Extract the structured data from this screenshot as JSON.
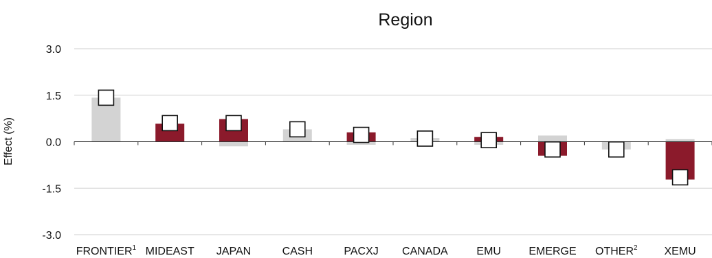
{
  "chart_data": {
    "type": "bar",
    "title": "Region",
    "ylabel": "Effect (%)",
    "ylim": [
      -3.0,
      3.0
    ],
    "yticks": [
      "3.0",
      "1.5",
      "0.0",
      "-1.5",
      "-3.0"
    ],
    "ytick_values": [
      3.0,
      1.5,
      0.0,
      -1.5,
      -3.0
    ],
    "grid": true,
    "categories": [
      {
        "label": "FRONTIER",
        "sup": "1"
      },
      {
        "label": "MIDEAST",
        "sup": ""
      },
      {
        "label": "JAPAN",
        "sup": ""
      },
      {
        "label": "CASH",
        "sup": ""
      },
      {
        "label": "PACXJ",
        "sup": ""
      },
      {
        "label": "CANADA",
        "sup": ""
      },
      {
        "label": "EMU",
        "sup": ""
      },
      {
        "label": "EMERGE",
        "sup": ""
      },
      {
        "label": "OTHER",
        "sup": "2"
      },
      {
        "label": "XEMU",
        "sup": ""
      }
    ],
    "series": [
      {
        "values": [
          1.42,
          0.0,
          -0.15,
          0.4,
          -0.1,
          0.12,
          -0.1,
          0.2,
          -0.25,
          0.08
        ],
        "color": "#d3d3d3"
      },
      {
        "values": [
          0.0,
          0.58,
          0.73,
          0.0,
          0.3,
          0.0,
          0.15,
          -0.45,
          0.0,
          -1.22
        ],
        "color": "#8b1a2b"
      },
      {
        "values": [
          1.42,
          0.6,
          0.6,
          0.4,
          0.22,
          0.1,
          0.05,
          -0.25,
          -0.25,
          -1.15
        ],
        "marker": "square"
      }
    ]
  }
}
